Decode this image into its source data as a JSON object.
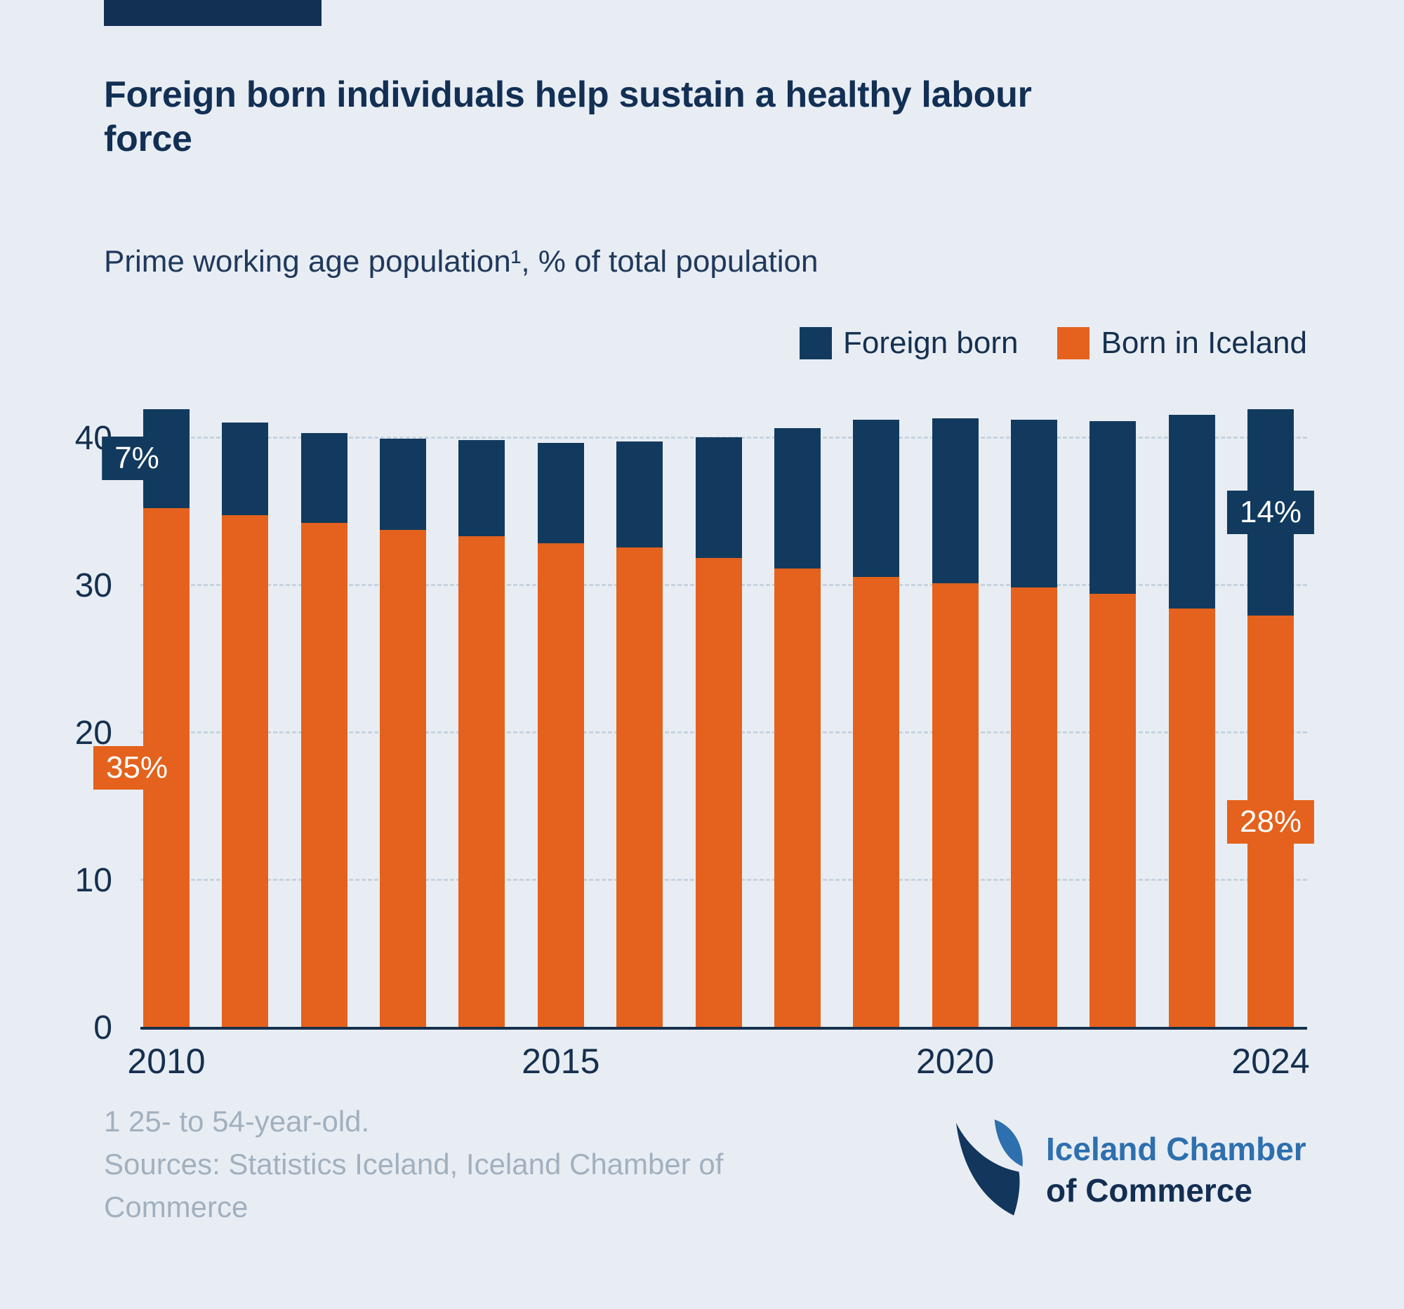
{
  "header": {
    "title": "Foreign born individuals help sustain a healthy labour force",
    "subtitle": "Prime working age population¹, % of total population"
  },
  "legend": [
    {
      "label": "Foreign born",
      "color": "#123a5e"
    },
    {
      "label": "Born in Iceland",
      "color": "#e4621d"
    }
  ],
  "chart_data": {
    "type": "bar",
    "stacked": true,
    "title": "Foreign born individuals help sustain a healthy labour force",
    "subtitle": "Prime working age population¹, % of total population",
    "categories": [
      2010,
      2011,
      2012,
      2013,
      2014,
      2015,
      2016,
      2017,
      2018,
      2019,
      2020,
      2021,
      2022,
      2023,
      2024
    ],
    "series": [
      {
        "name": "Born in Iceland",
        "color": "#e4621d",
        "values": [
          35.3,
          34.8,
          34.3,
          33.8,
          33.4,
          32.9,
          32.6,
          31.9,
          31.2,
          30.6,
          30.2,
          29.9,
          29.5,
          28.5,
          28.0
        ]
      },
      {
        "name": "Foreign born",
        "color": "#123a5e",
        "values": [
          6.7,
          6.3,
          6.1,
          6.2,
          6.5,
          6.8,
          7.2,
          8.2,
          9.5,
          10.7,
          11.2,
          11.4,
          11.7,
          13.1,
          14.0
        ]
      }
    ],
    "ylim": [
      0,
      42
    ],
    "yticks": [
      0,
      10,
      20,
      30,
      40
    ],
    "xticks": [
      {
        "label": "2010",
        "bar": 0
      },
      {
        "label": "2015",
        "bar": 5
      },
      {
        "label": "2020",
        "bar": 10
      },
      {
        "label": "2024",
        "bar": 14
      }
    ],
    "annotations": [
      {
        "text": "7%",
        "bar": 0,
        "segment": "Foreign born",
        "dx": -42
      },
      {
        "text": "35%",
        "bar": 0,
        "segment": "Born in Iceland",
        "dx": -42
      },
      {
        "text": "14%",
        "bar": 14,
        "segment": "Foreign born",
        "dx": 0
      },
      {
        "text": "28%",
        "bar": 14,
        "segment": "Born in Iceland",
        "dx": 0
      }
    ],
    "grid": true,
    "legend_position": "top-right"
  },
  "footnotes": {
    "note": "1 25- to 54-year-old.",
    "sources": "Sources: Statistics Iceland, Iceland Chamber of Commerce"
  },
  "logo": {
    "line1": "Iceland Chamber",
    "line2": "of Commerce"
  },
  "colors": {
    "background": "#e8edf4",
    "navy": "#123a5e",
    "orange": "#e4621d",
    "title": "#122f54",
    "grid": "#c6d3de",
    "footnote": "#a2b0be",
    "logo_blue": "#2e6fae"
  }
}
